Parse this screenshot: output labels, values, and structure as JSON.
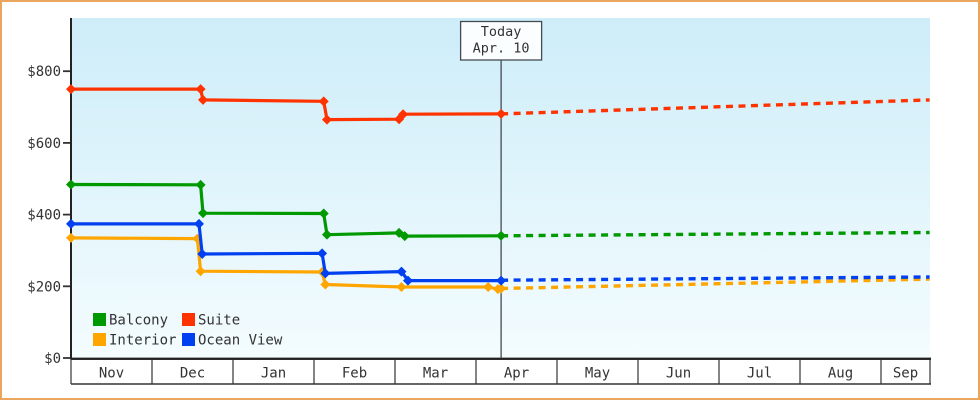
{
  "frame": {
    "border_color": "#eaa55e",
    "plot_background_top": "#cdedf9",
    "plot_background_bottom": "#f4fcfe"
  },
  "chart_data": {
    "type": "line",
    "title": "",
    "subtitle": "",
    "description": "Stepped price-history chart for four cabin categories with dashed price projections after today's date",
    "today_marker": {
      "line1": "Today",
      "line2": "Apr. 10",
      "month_pos": 5.31
    },
    "x_axis": {
      "months": [
        "Nov",
        "Dec",
        "Jan",
        "Feb",
        "Mar",
        "Apr",
        "May",
        "Jun",
        "Jul",
        "Aug",
        "Sep"
      ],
      "range_months": [
        0,
        10.6
      ]
    },
    "y_axis": {
      "tick_labels": [
        "$800",
        "$600",
        "$400",
        "$200",
        "$0"
      ],
      "tick_values": [
        800,
        600,
        400,
        200,
        0
      ],
      "unit": "$",
      "ylim": [
        0,
        950
      ],
      "grid": "off"
    },
    "legend": {
      "position": "bottom-left-inside"
    },
    "series": [
      {
        "name": "Balcony",
        "color": "#009900",
        "points": [
          [
            0,
            484
          ],
          [
            1.6,
            483
          ],
          [
            1.63,
            404
          ],
          [
            3.12,
            403
          ],
          [
            3.16,
            344
          ],
          [
            4.05,
            349
          ],
          [
            4.12,
            340
          ],
          [
            5.31,
            341
          ]
        ],
        "projection": [
          [
            5.31,
            341
          ],
          [
            10.6,
            350
          ]
        ]
      },
      {
        "name": "Suite",
        "color": "#ff3300",
        "points": [
          [
            0,
            750
          ],
          [
            1.6,
            750
          ],
          [
            1.63,
            720
          ],
          [
            3.12,
            716
          ],
          [
            3.16,
            665
          ],
          [
            4.05,
            666
          ],
          [
            4.1,
            680
          ],
          [
            5.31,
            681
          ]
        ],
        "projection": [
          [
            5.31,
            681
          ],
          [
            10.6,
            720
          ]
        ]
      },
      {
        "name": "Interior",
        "color": "#ffa500",
        "points": [
          [
            0,
            335
          ],
          [
            1.56,
            333
          ],
          [
            1.6,
            242
          ],
          [
            3.1,
            240
          ],
          [
            3.14,
            205
          ],
          [
            4.08,
            198
          ],
          [
            5.15,
            198
          ],
          [
            5.27,
            192
          ],
          [
            5.31,
            194
          ]
        ],
        "projection": [
          [
            5.31,
            194
          ],
          [
            10.6,
            220
          ]
        ]
      },
      {
        "name": "Ocean View",
        "color": "#0040f0",
        "points": [
          [
            0,
            374
          ],
          [
            1.58,
            374
          ],
          [
            1.62,
            290
          ],
          [
            3.1,
            292
          ],
          [
            3.14,
            236
          ],
          [
            4.08,
            241
          ],
          [
            4.16,
            216
          ],
          [
            5.31,
            216
          ]
        ],
        "projection": [
          [
            5.31,
            217
          ],
          [
            10.6,
            226
          ]
        ]
      }
    ]
  }
}
